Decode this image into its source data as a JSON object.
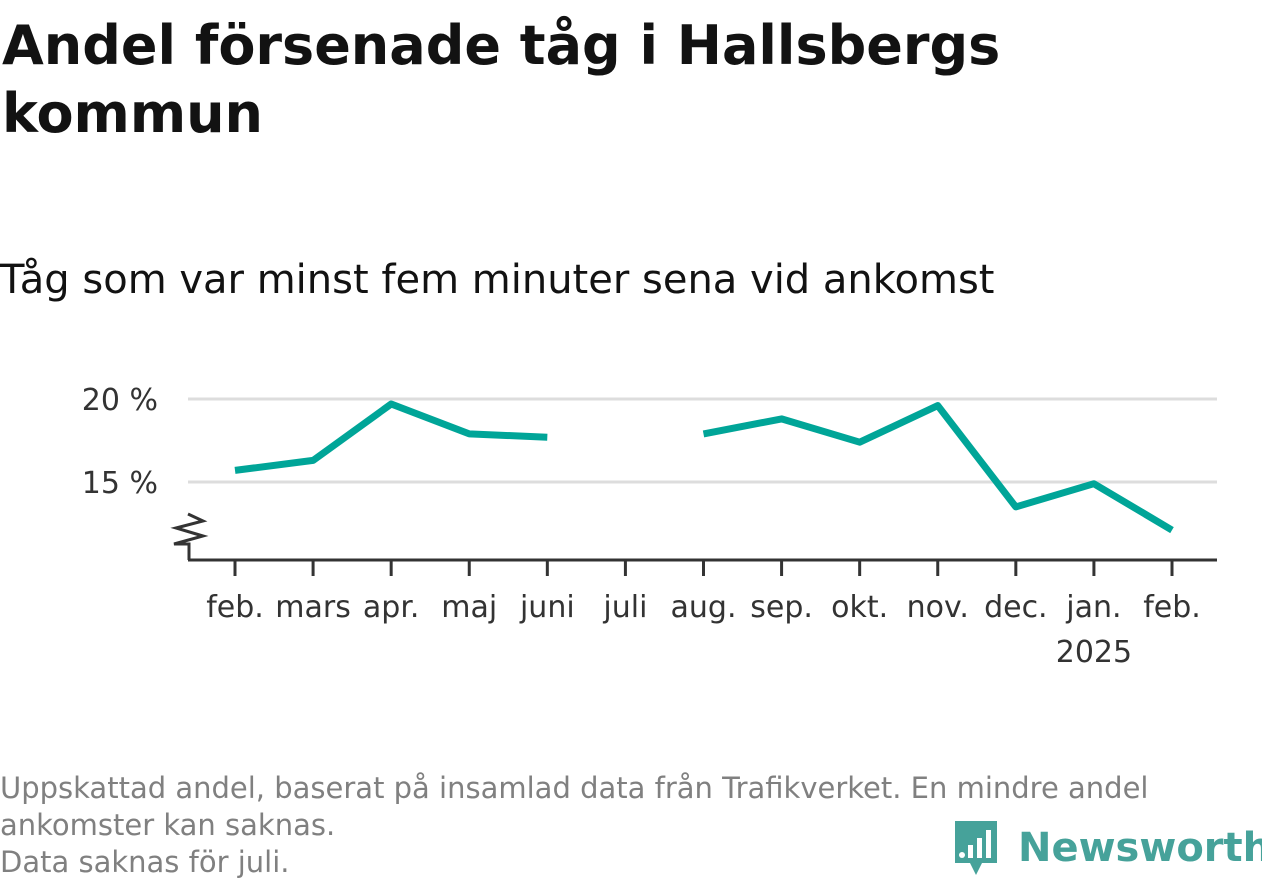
{
  "header": {
    "title": "Andel försenade tåg i Hallsbergs kommun",
    "subtitle": "Tåg som var minst fem minuter sena vid ankomst"
  },
  "footnote": {
    "line1": "Uppskattad andel, baserat på insamlad data från Trafikverket. En mindre andel",
    "line2": "ankomster kan saknas.",
    "line3": "Data saknas för juli."
  },
  "brand": {
    "name": "Newsworthy",
    "color": "#46a29a"
  },
  "chart_data": {
    "type": "line",
    "title": "Andel försenade tåg i Hallsbergs kommun",
    "subtitle": "Tåg som var minst fem minuter sena vid ankomst",
    "xlabel": "",
    "ylabel": "",
    "categories": [
      "feb.",
      "mars",
      "apr.",
      "maj",
      "juni",
      "juli",
      "aug.",
      "sep.",
      "okt.",
      "nov.",
      "dec.",
      "jan.",
      "feb."
    ],
    "year_labels": [
      {
        "index": 11,
        "label": "2025"
      }
    ],
    "series": [
      {
        "color": "#00a598",
        "values": [
          15.7,
          16.3,
          19.7,
          17.9,
          17.7,
          null,
          17.9,
          18.8,
          17.4,
          19.6,
          13.5,
          14.9,
          12.1
        ]
      }
    ],
    "yticks": [
      {
        "value": 15,
        "label": "15 %"
      },
      {
        "value": 20,
        "label": "20 %"
      }
    ],
    "ylim": [
      11,
      20
    ],
    "axis_break": true,
    "grid": true,
    "legend": "none"
  }
}
